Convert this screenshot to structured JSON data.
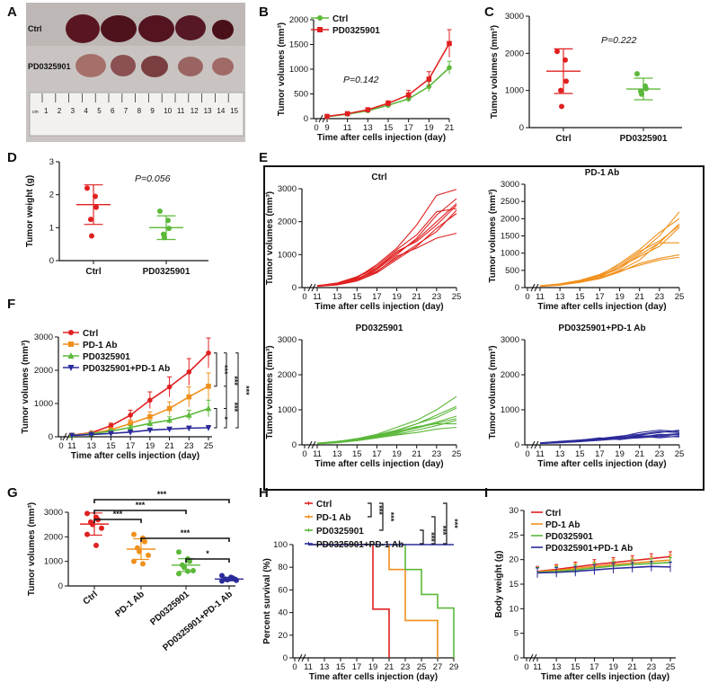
{
  "figure": {
    "panel_letters": [
      "A",
      "B",
      "C",
      "D",
      "E",
      "F",
      "G",
      "H",
      "I"
    ],
    "panelA": {
      "row_labels": [
        "Ctrl",
        "PD0325901"
      ],
      "ruler_cm": "cm",
      "ruler_ticks": [
        "1",
        "2",
        "3",
        "4",
        "5",
        "6",
        "7",
        "8",
        "9",
        "10",
        "11",
        "12",
        "13",
        "14",
        "15"
      ]
    }
  },
  "colors": {
    "ctrl": "#e02020",
    "pd1": "#f0901c",
    "pd03": "#5cb83a",
    "combo": "#2b2b9a",
    "axis": "#111111"
  },
  "chart_data": [
    {
      "id": "B",
      "type": "line",
      "xlabel": "Time after cells injection (day)",
      "ylabel": "Tumor volumes (mm³)",
      "xticks": [
        "0",
        "9",
        "11",
        "13",
        "15",
        "17",
        "19",
        "21"
      ],
      "yticks": [
        "0",
        "500",
        "1000",
        "1500",
        "2000"
      ],
      "ylim": [
        0,
        2000
      ],
      "annotation": "P=0.142",
      "x": [
        9,
        11,
        13,
        15,
        17,
        19,
        21
      ],
      "series": [
        {
          "name": "Ctrl",
          "color": "#5cb83a",
          "marker": "circle",
          "values": [
            40,
            90,
            160,
            270,
            400,
            650,
            1030
          ],
          "err": [
            10,
            20,
            30,
            40,
            60,
            100,
            130
          ]
        },
        {
          "name": "PD0325901",
          "color": "#e02020",
          "marker": "square",
          "values": [
            45,
            100,
            180,
            310,
            480,
            800,
            1520
          ],
          "err": [
            10,
            20,
            30,
            50,
            90,
            150,
            280
          ]
        }
      ]
    },
    {
      "id": "C",
      "type": "scatter",
      "ylabel": "Tumor volumes (mm³)",
      "yticks": [
        "0",
        "1000",
        "2000",
        "3000"
      ],
      "ylim": [
        0,
        3000
      ],
      "annotation": "P=0.222",
      "categories": [
        "Ctrl",
        "PD0325901"
      ],
      "groups": [
        {
          "name": "Ctrl",
          "color": "#e02020",
          "points": [
            2050,
            1820,
            1250,
            1000,
            570
          ],
          "mean": 1520,
          "sd": 600
        },
        {
          "name": "PD0325901",
          "color": "#5cb83a",
          "points": [
            1450,
            1120,
            1050,
            980,
            900
          ],
          "mean": 1040,
          "sd": 290
        }
      ]
    },
    {
      "id": "D",
      "type": "scatter",
      "ylabel": "Tumor weight (g)",
      "yticks": [
        "0",
        "1",
        "2",
        "3"
      ],
      "ylim": [
        0,
        3
      ],
      "annotation": "P=0.056",
      "categories": [
        "Ctrl",
        "PD0325901"
      ],
      "groups": [
        {
          "name": "Ctrl",
          "color": "#e02020",
          "points": [
            2.2,
            1.95,
            1.62,
            1.25,
            0.75
          ],
          "mean": 1.7,
          "sd": 0.6
        },
        {
          "name": "PD0325901",
          "color": "#5cb83a",
          "points": [
            1.5,
            1.22,
            0.98,
            0.8,
            0.7
          ],
          "mean": 1.0,
          "sd": 0.36
        }
      ]
    },
    {
      "id": "E",
      "type": "line",
      "title": "Ctrl",
      "xlabel": "Time after cells injection (day)",
      "ylabel": "Tumor volumes (mm³)",
      "xticks": [
        "0",
        "11",
        "13",
        "15",
        "17",
        "19",
        "21",
        "23",
        "25"
      ],
      "yticks": [
        "0",
        "1000",
        "2000",
        "3000"
      ],
      "ylim": [
        0,
        3000
      ],
      "x": [
        11,
        13,
        15,
        17,
        19,
        21,
        23,
        25
      ],
      "color": "#e02020",
      "lines": [
        [
          50,
          120,
          300,
          700,
          1200,
          1900,
          2800,
          2980
        ],
        [
          40,
          90,
          250,
          550,
          1000,
          1500,
          2200,
          2700
        ],
        [
          60,
          130,
          320,
          600,
          1100,
          1400,
          1900,
          2500
        ],
        [
          45,
          110,
          280,
          500,
          900,
          1300,
          1700,
          2350
        ],
        [
          55,
          100,
          230,
          480,
          950,
          1200,
          1500,
          1650
        ],
        [
          50,
          140,
          330,
          650,
          1150,
          1600,
          2300,
          2400
        ],
        [
          40,
          80,
          200,
          450,
          850,
          1250,
          1800,
          2250
        ],
        [
          60,
          120,
          260,
          580,
          1050,
          1450,
          2000,
          2550
        ]
      ]
    },
    {
      "id": "E",
      "type": "line",
      "title": "PD-1 Ab",
      "xlabel": "Time after cells injection (day)",
      "ylabel": "Tumor volumes (mm³)",
      "xticks": [
        "0",
        "11",
        "13",
        "15",
        "17",
        "19",
        "21",
        "23",
        "25"
      ],
      "yticks": [
        "0",
        "500",
        "1000",
        "1500",
        "2000",
        "2500",
        "3000"
      ],
      "ylim": [
        0,
        3000
      ],
      "x": [
        11,
        13,
        15,
        17,
        19,
        21,
        23,
        25
      ],
      "color": "#f0901c",
      "lines": [
        [
          40,
          80,
          150,
          300,
          600,
          1000,
          1500,
          2200
        ],
        [
          50,
          100,
          200,
          350,
          700,
          1100,
          1600,
          2000
        ],
        [
          45,
          90,
          180,
          330,
          550,
          950,
          1300,
          1850
        ],
        [
          35,
          70,
          160,
          280,
          500,
          800,
          1300,
          1300
        ],
        [
          50,
          110,
          210,
          380,
          650,
          1050,
          1350,
          1800
        ],
        [
          40,
          80,
          150,
          260,
          450,
          700,
          850,
          950
        ],
        [
          45,
          95,
          170,
          290,
          480,
          650,
          800,
          880
        ],
        [
          55,
          100,
          190,
          340,
          600,
          900,
          1200,
          1750
        ]
      ]
    },
    {
      "id": "E",
      "type": "line",
      "title": "PD0325901",
      "xlabel": "Time after cells injection (day)",
      "ylabel": "Tumor volumes (mm³)",
      "xticks": [
        "0",
        "11",
        "13",
        "15",
        "17",
        "19",
        "21",
        "23",
        "25"
      ],
      "yticks": [
        "0",
        "1000",
        "2000",
        "3000"
      ],
      "ylim": [
        0,
        3000
      ],
      "x": [
        11,
        13,
        15,
        17,
        19,
        21,
        23,
        25
      ],
      "color": "#5cb83a",
      "lines": [
        [
          40,
          90,
          180,
          300,
          500,
          700,
          1000,
          1380
        ],
        [
          35,
          80,
          150,
          260,
          400,
          600,
          850,
          1100
        ],
        [
          50,
          100,
          170,
          280,
          420,
          600,
          780,
          1050
        ],
        [
          40,
          70,
          130,
          220,
          330,
          500,
          650,
          820
        ],
        [
          30,
          60,
          120,
          200,
          300,
          420,
          550,
          700
        ],
        [
          45,
          85,
          160,
          250,
          380,
          520,
          600,
          600
        ],
        [
          35,
          70,
          120,
          200,
          280,
          350,
          450,
          500
        ],
        [
          40,
          75,
          140,
          230,
          350,
          480,
          620,
          750
        ]
      ]
    },
    {
      "id": "E",
      "type": "line",
      "title": "PD0325901+PD-1 Ab",
      "xlabel": "Time after cells injection (day)",
      "ylabel": "Tumor volumes (mm³)",
      "xticks": [
        "0",
        "11",
        "13",
        "15",
        "17",
        "19",
        "21",
        "23",
        "25"
      ],
      "yticks": [
        "0",
        "1000",
        "2000",
        "3000"
      ],
      "ylim": [
        0,
        3000
      ],
      "x": [
        11,
        13,
        15,
        17,
        19,
        21,
        23,
        25
      ],
      "color": "#2b2b9a",
      "lines": [
        [
          50,
          80,
          120,
          150,
          200,
          280,
          350,
          420
        ],
        [
          40,
          70,
          100,
          180,
          250,
          300,
          380,
          350
        ],
        [
          60,
          90,
          130,
          200,
          150,
          220,
          300,
          280
        ],
        [
          45,
          85,
          110,
          160,
          220,
          260,
          250,
          300
        ],
        [
          35,
          60,
          90,
          130,
          170,
          200,
          240,
          230
        ],
        [
          55,
          100,
          140,
          180,
          230,
          350,
          420,
          380
        ],
        [
          40,
          75,
          110,
          150,
          190,
          230,
          280,
          320
        ],
        [
          50,
          80,
          120,
          170,
          210,
          250,
          200,
          250
        ]
      ]
    },
    {
      "id": "F",
      "type": "line",
      "xlabel": "Time after cells injection (day)",
      "ylabel": "Tumor volumes (mm³)",
      "xticks": [
        "0",
        "11",
        "13",
        "15",
        "17",
        "19",
        "21",
        "23",
        "25"
      ],
      "yticks": [
        "0",
        "1000",
        "2000",
        "3000"
      ],
      "ylim": [
        0,
        3000
      ],
      "x": [
        11,
        13,
        15,
        17,
        19,
        21,
        23,
        25
      ],
      "series": [
        {
          "name": "Ctrl",
          "color": "#e02020",
          "marker": "circle",
          "values": [
            50,
            120,
            330,
            650,
            1100,
            1500,
            1950,
            2520
          ],
          "err": [
            10,
            30,
            80,
            150,
            250,
            300,
            400,
            450
          ]
        },
        {
          "name": "PD-1 Ab",
          "color": "#f0901c",
          "marker": "square",
          "values": [
            45,
            100,
            210,
            400,
            600,
            850,
            1200,
            1520
          ],
          "err": [
            10,
            25,
            60,
            100,
            150,
            200,
            300,
            400
          ]
        },
        {
          "name": "PD0325901",
          "color": "#5cb83a",
          "marker": "triangle",
          "values": [
            40,
            90,
            170,
            280,
            400,
            500,
            650,
            850
          ],
          "err": [
            10,
            20,
            40,
            60,
            80,
            100,
            150,
            250
          ]
        },
        {
          "name": "PD0325901+PD-1 Ab",
          "color": "#2b2b9a",
          "marker": "tri-down",
          "values": [
            40,
            70,
            100,
            140,
            200,
            230,
            260,
            270
          ],
          "err": [
            10,
            15,
            20,
            30,
            40,
            50,
            60,
            70
          ]
        }
      ],
      "significance": [
        "***",
        "***",
        "***",
        "*",
        "***"
      ]
    },
    {
      "id": "G",
      "type": "scatter",
      "ylabel": "Tumor volumes (mm³)",
      "yticks": [
        "0",
        "1000",
        "2000",
        "3000"
      ],
      "ylim": [
        0,
        3000
      ],
      "categories": [
        "Ctrl",
        "PD-1 Ab",
        "PD0325901",
        "PD0325901+PD-1 Ab"
      ],
      "groups": [
        {
          "name": "Ctrl",
          "color": "#e02020",
          "points": [
            2950,
            2800,
            2700,
            2600,
            2500,
            2350,
            2100,
            1650
          ],
          "mean": 2520,
          "sd": 450
        },
        {
          "name": "PD-1 Ab",
          "color": "#f0901c",
          "points": [
            2100,
            1950,
            1800,
            1550,
            1400,
            1250,
            1000,
            900
          ],
          "mean": 1500,
          "sd": 420
        },
        {
          "name": "PD0325901",
          "color": "#5cb83a",
          "points": [
            1380,
            1100,
            1000,
            850,
            750,
            620,
            500,
            600
          ],
          "mean": 850,
          "sd": 260
        },
        {
          "name": "PD0325901+PD-1 Ab",
          "color": "#2b2b9a",
          "points": [
            420,
            350,
            320,
            280,
            250,
            230,
            200,
            300
          ],
          "mean": 280,
          "sd": 70
        }
      ],
      "brackets": [
        "***",
        "***",
        "***",
        "***",
        "*"
      ]
    },
    {
      "id": "H",
      "type": "line",
      "xlabel": "Time after cells injection (day)",
      "ylabel": "Percent survival  (%)",
      "xticks": [
        "0",
        "11",
        "13",
        "15",
        "17",
        "19",
        "21",
        "23",
        "25",
        "27",
        "29"
      ],
      "yticks": [
        "0",
        "20",
        "40",
        "60",
        "80",
        "100"
      ],
      "ylim": [
        0,
        100
      ],
      "series": [
        {
          "name": "Ctrl",
          "color": "#e02020",
          "x": [
            11,
            19,
            19,
            21,
            21
          ],
          "values": [
            100,
            100,
            43,
            43,
            0
          ]
        },
        {
          "name": "PD-1 Ab",
          "color": "#f0901c",
          "x": [
            11,
            21,
            21,
            23,
            23,
            27,
            27
          ],
          "values": [
            100,
            100,
            78,
            78,
            33,
            33,
            0
          ]
        },
        {
          "name": "PD0325901",
          "color": "#5cb83a",
          "x": [
            11,
            23,
            23,
            25,
            25,
            27,
            27,
            29,
            29
          ],
          "values": [
            100,
            100,
            78,
            78,
            56,
            56,
            44,
            44,
            0
          ]
        },
        {
          "name": "PD0325901+PD-1 Ab",
          "color": "#2b2b9a",
          "x": [
            11,
            29
          ],
          "values": [
            100,
            100
          ]
        }
      ],
      "significance": [
        "***",
        "***",
        "***",
        "***",
        "***"
      ]
    },
    {
      "id": "I",
      "type": "line",
      "xlabel": "Time after cells injection (day)",
      "ylabel": "Body weight (g)",
      "xticks": [
        "0",
        "11",
        "13",
        "15",
        "17",
        "19",
        "21",
        "23",
        "25"
      ],
      "yticks": [
        "0",
        "5",
        "10",
        "15",
        "20",
        "25",
        "30"
      ],
      "ylim": [
        0,
        30
      ],
      "x": [
        11,
        13,
        15,
        17,
        19,
        21,
        23,
        25
      ],
      "series": [
        {
          "name": "Ctrl",
          "color": "#e02020",
          "values": [
            17.6,
            18.0,
            18.5,
            19.0,
            19.4,
            19.8,
            20.2,
            20.6
          ],
          "err": [
            1,
            1,
            1,
            1,
            1,
            1,
            1,
            1
          ]
        },
        {
          "name": "PD-1 Ab",
          "color": "#f0901c",
          "values": [
            17.5,
            17.8,
            18.2,
            18.6,
            19.0,
            19.3,
            19.6,
            19.9
          ],
          "err": [
            1,
            1,
            1,
            1,
            1,
            1,
            1,
            1
          ]
        },
        {
          "name": "PD0325901",
          "color": "#5cb83a",
          "values": [
            17.4,
            17.6,
            17.9,
            18.3,
            18.7,
            19.0,
            19.2,
            19.4
          ],
          "err": [
            1,
            1,
            1,
            1,
            1,
            1,
            1,
            1
          ]
        },
        {
          "name": "PD0325901+PD-1 Ab",
          "color": "#2b2b9a",
          "values": [
            17.3,
            17.4,
            17.6,
            17.9,
            18.2,
            18.4,
            18.6,
            18.5
          ],
          "err": [
            1,
            1,
            1,
            1,
            1,
            1,
            1,
            1
          ]
        }
      ]
    }
  ]
}
